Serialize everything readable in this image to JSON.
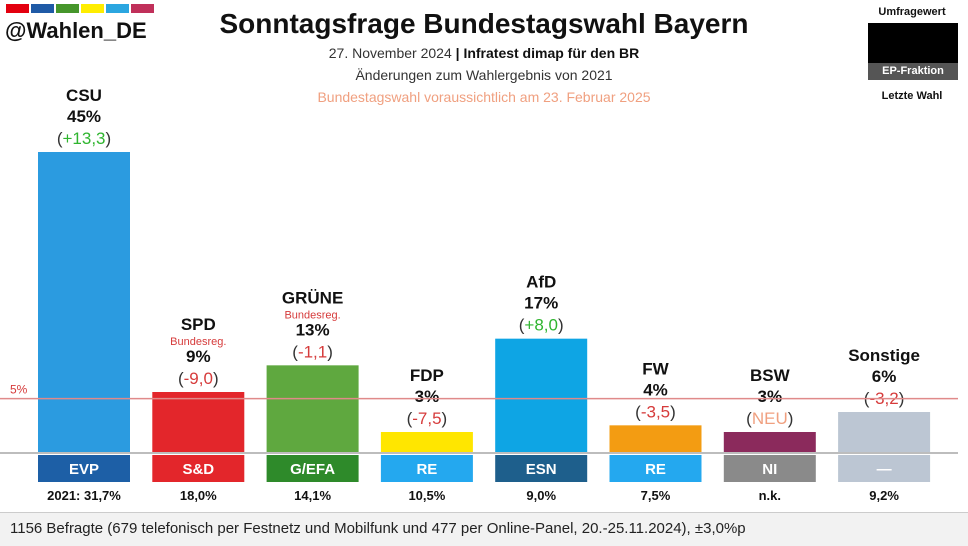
{
  "header": {
    "brand_colors": [
      "#e3000f",
      "#1f5aa6",
      "#46962b",
      "#ffed00",
      "#2ba6e0",
      "#c0305a"
    ],
    "handle": "@Wahlen_DE",
    "title": "Sonntagsfrage Bundestagswahl Bayern",
    "date": "27. November 2024",
    "separator": "|",
    "source": "Infratest dimap für den BR",
    "changes_note": "Änderungen zum Wahlergebnis von 2021",
    "election_note": "Bundestagswahl voraussichtlich am 23. Februar 2025"
  },
  "legend": {
    "poll_label": "Umfragewert",
    "faction_label": "EP-Fraktion",
    "last_label": "Letzte Wahl"
  },
  "footer": {
    "text": "1156 Befragte (679 telefonisch per Festnetz und Mobilfunk und 477 per Online-Panel, 20.-25.11.2024), ±3,0%p"
  },
  "chart_data": {
    "type": "bar",
    "threshold": {
      "value": 5,
      "label": "5%"
    },
    "ylim": [
      0,
      45
    ],
    "categories": [
      "CSU",
      "SPD",
      "GRÜNE",
      "FDP",
      "AfD",
      "FW",
      "BSW",
      "Sonstige"
    ],
    "values": [
      45,
      9,
      13,
      3,
      17,
      4,
      3,
      6
    ],
    "parties": [
      {
        "name": "CSU",
        "value": 45,
        "value_label": "45%",
        "change": "+13,3",
        "change_type": "positive",
        "note": "",
        "faction": "EVP",
        "last": "2021: 31,7%",
        "color": "#2b9be0",
        "faction_color": "#1d5fa6"
      },
      {
        "name": "SPD",
        "value": 9,
        "value_label": "9%",
        "change": "-9,0",
        "change_type": "negative",
        "note": "Bundesreg.",
        "faction": "S&D",
        "last": "18,0%",
        "color": "#e3262b",
        "faction_color": "#e3262b"
      },
      {
        "name": "GRÜNE",
        "value": 13,
        "value_label": "13%",
        "change": "-1,1",
        "change_type": "negative",
        "note": "Bundesreg.",
        "faction": "G/EFA",
        "last": "14,1%",
        "color": "#5fa83f",
        "faction_color": "#2e8a2a"
      },
      {
        "name": "FDP",
        "value": 3,
        "value_label": "3%",
        "change": "-7,5",
        "change_type": "negative",
        "note": "",
        "faction": "RE",
        "last": "10,5%",
        "color": "#ffe600",
        "faction_color": "#24a8ef"
      },
      {
        "name": "AfD",
        "value": 17,
        "value_label": "17%",
        "change": "+8,0",
        "change_type": "positive",
        "note": "",
        "faction": "ESN",
        "last": "9,0%",
        "color": "#0ea5e4",
        "faction_color": "#1e5f8c"
      },
      {
        "name": "FW",
        "value": 4,
        "value_label": "4%",
        "change": "-3,5",
        "change_type": "negative",
        "note": "",
        "faction": "RE",
        "last": "7,5%",
        "color": "#f39c12",
        "faction_color": "#24a8ef"
      },
      {
        "name": "BSW",
        "value": 3,
        "value_label": "3%",
        "change": "NEU",
        "change_type": "new",
        "note": "",
        "faction": "NI",
        "last": "n.k.",
        "color": "#8b2a5c",
        "faction_color": "#8a8a8a"
      },
      {
        "name": "Sonstige",
        "value": 6,
        "value_label": "6%",
        "change": "-3,2",
        "change_type": "negative",
        "note": "",
        "faction": "—",
        "last": "9,2%",
        "color": "#bcc6d3",
        "faction_color": "#bcc6d3"
      }
    ]
  }
}
